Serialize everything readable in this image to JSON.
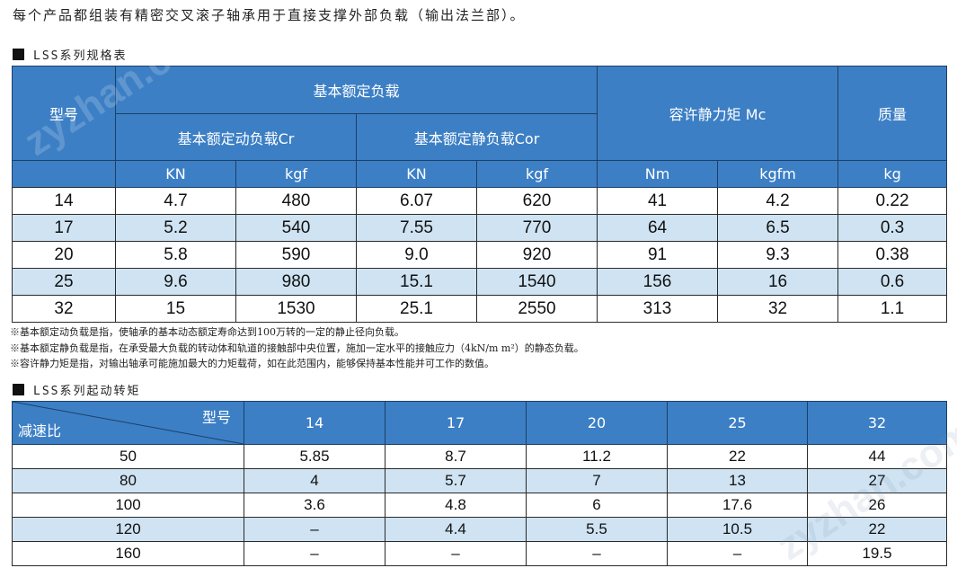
{
  "intro": "每个产品都组装有精密交叉滚子轴承用于直接支撑外部负载（输出法兰部）。",
  "spec_section_title": "LSS系列规格表",
  "spec_table": {
    "model_header": "型号",
    "load_group_header": "基本额定负载",
    "dynamic_header": "基本额定动负载Cr",
    "static_header": "基本额定静负载Cor",
    "moment_header": "容许静力矩 Mc",
    "mass_header": "质量",
    "units": [
      "KN",
      "kgf",
      "KN",
      "kgf",
      "Nm",
      "kgfm",
      "kg"
    ],
    "rows": [
      [
        "14",
        "4.7",
        "480",
        "6.07",
        "620",
        "41",
        "4.2",
        "0.22"
      ],
      [
        "17",
        "5.2",
        "540",
        "7.55",
        "770",
        "64",
        "6.5",
        "0.3"
      ],
      [
        "20",
        "5.8",
        "590",
        "9.0",
        "920",
        "91",
        "9.3",
        "0.38"
      ],
      [
        "25",
        "9.6",
        "980",
        "15.1",
        "1540",
        "156",
        "16",
        "0.6"
      ],
      [
        "32",
        "15",
        "1530",
        "25.1",
        "2550",
        "313",
        "32",
        "1.1"
      ]
    ]
  },
  "notes": [
    "※基本额定动负载是指，使轴承的基本动态额定寿命达到100万转的一定的静止径向负载。",
    "※基本额定静负载是指，在承受最大负载的转动体和轨道的接触部中央位置，施加一定水平的接触应力（4kN/m m²）的静态负载。",
    "※容许静力矩是指，对输出轴承可能施加最大的力矩载荷，如在此范围内，能够保持基本性能并可工作的数值。"
  ],
  "torque_section_title": "LSS系列起动转矩",
  "torque_table": {
    "corner_top": "型号",
    "corner_bottom": "减速比",
    "models": [
      "14",
      "17",
      "20",
      "25",
      "32"
    ],
    "rows": [
      [
        "50",
        "5.85",
        "8.7",
        "11.2",
        "22",
        "44"
      ],
      [
        "80",
        "4",
        "5.7",
        "7",
        "13",
        "27"
      ],
      [
        "100",
        "3.6",
        "4.8",
        "6",
        "17.6",
        "26"
      ],
      [
        "120",
        "–",
        "4.4",
        "5.5",
        "10.5",
        "22"
      ],
      [
        "160",
        "–",
        "–",
        "–",
        "–",
        "19.5"
      ]
    ]
  },
  "watermark": "zyzhan.com",
  "colors": {
    "header_blue": "#3c7fc5",
    "row_alt": "#cfe3f2"
  }
}
